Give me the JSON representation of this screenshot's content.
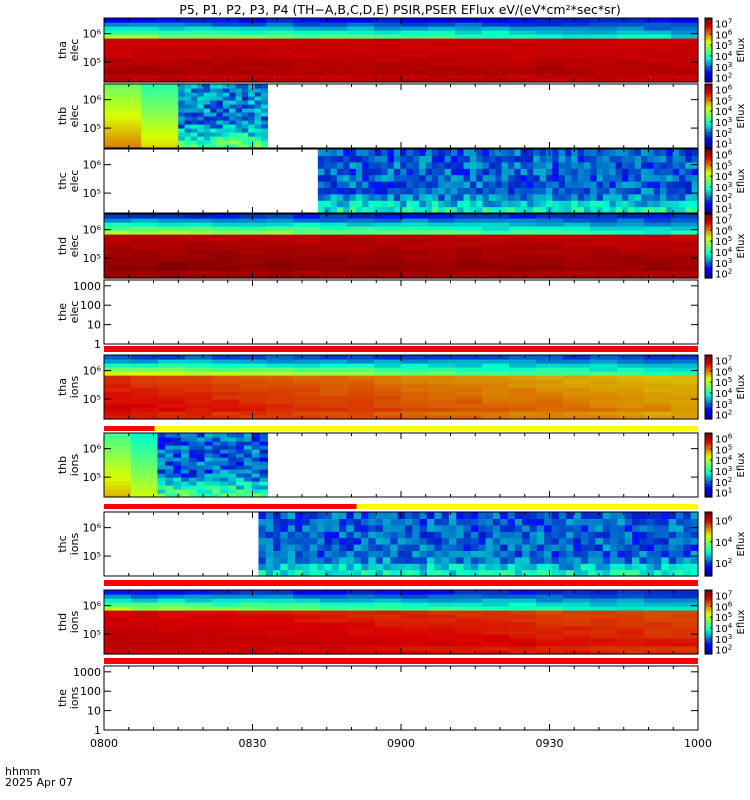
{
  "title": "P5, P1, P2, P3, P4 (TH−A,B,C,D,E) PSIR,PSER EFlux eV/(eV*cm²*sec*sr)",
  "xaxis": {
    "label": "hhmm",
    "date": "2025 Apr 07",
    "ticks": [
      "0800",
      "0830",
      "0900",
      "0930",
      "1000"
    ],
    "range_hours": [
      8,
      10
    ]
  },
  "chart_data": [
    {
      "id": "tha-elec",
      "type": "heatmap",
      "probe": "tha",
      "species": "elec",
      "ylabel_top": "tha",
      "ylabel_bottom": "elec",
      "yscale": "log",
      "yticks": [
        "10⁶",
        "10⁵"
      ],
      "ytick_exp": [
        6,
        5
      ],
      "yrange_exp": [
        4.3,
        6.55
      ],
      "colorbar": {
        "label": "Eflux",
        "ticks_exp": [
          7,
          6,
          5,
          4,
          3,
          2
        ],
        "range_exp": [
          1.6,
          7.5
        ]
      },
      "data": {
        "start": 8.0,
        "end": 10.0,
        "pattern": "dense",
        "peak_exp": 7.2,
        "edge_exp": 2.2,
        "decay": 0.05
      }
    },
    {
      "id": "thb-elec",
      "type": "heatmap",
      "probe": "thb",
      "species": "elec",
      "ylabel_top": "thb",
      "ylabel_bottom": "elec",
      "yscale": "log",
      "yticks": [
        "10⁶",
        "10⁵"
      ],
      "ytick_exp": [
        6,
        5
      ],
      "yrange_exp": [
        4.3,
        6.55
      ],
      "colorbar": {
        "label": "Eflux",
        "ticks_exp": [
          6,
          5,
          4,
          3,
          2,
          1
        ],
        "range_exp": [
          0.6,
          6.5
        ]
      },
      "data": {
        "start": 8.0,
        "end": 8.55,
        "pattern": "stepped",
        "segments": [
          [
            8.0,
            8.25,
            4.3
          ],
          [
            8.25,
            8.55,
            2.1
          ]
        ]
      }
    },
    {
      "id": "thc-elec",
      "type": "heatmap",
      "probe": "thc",
      "species": "elec",
      "ylabel_top": "thc",
      "ylabel_bottom": "elec",
      "yscale": "log",
      "yticks": [
        "10⁶",
        "10⁵"
      ],
      "ytick_exp": [
        6,
        5
      ],
      "yrange_exp": [
        4.3,
        6.55
      ],
      "colorbar": {
        "label": "Eflux",
        "ticks_exp": [
          6,
          5,
          4,
          3,
          2,
          1
        ],
        "range_exp": [
          0.6,
          6.5
        ]
      },
      "data": {
        "start": 8.72,
        "end": 10.0,
        "pattern": "noise",
        "level_exp": 1.9
      }
    },
    {
      "id": "thd-elec",
      "type": "heatmap",
      "probe": "thd",
      "species": "elec",
      "ylabel_top": "thd",
      "ylabel_bottom": "elec",
      "yscale": "log",
      "yticks": [
        "10⁶",
        "10⁵"
      ],
      "ytick_exp": [
        6,
        5
      ],
      "yrange_exp": [
        4.3,
        6.55
      ],
      "colorbar": {
        "label": "Eflux",
        "ticks_exp": [
          7,
          6,
          5,
          4,
          3,
          2
        ],
        "range_exp": [
          1.6,
          7.5
        ]
      },
      "data": {
        "start": 8.0,
        "end": 10.0,
        "pattern": "dense",
        "peak_exp": 7.4,
        "edge_exp": 2.4,
        "decay": 0.08
      }
    },
    {
      "id": "the-elec",
      "type": "line",
      "probe": "the",
      "species": "elec",
      "ylabel_top": "the",
      "ylabel_bottom": "elec",
      "yscale": "log",
      "yticks": [
        "1000",
        "100",
        "10",
        "1"
      ],
      "ytick_exp": [
        3,
        2,
        1,
        0
      ],
      "yrange_exp": [
        0,
        3.3
      ],
      "status_bar": "red",
      "data": {
        "pattern": "empty"
      }
    },
    {
      "id": "tha-ions",
      "type": "heatmap",
      "probe": "tha",
      "species": "ions",
      "ylabel_top": "tha",
      "ylabel_bottom": "ions",
      "yscale": "log",
      "yticks": [
        "10⁶",
        "10⁵"
      ],
      "ytick_exp": [
        6,
        5
      ],
      "yrange_exp": [
        4.3,
        6.55
      ],
      "colorbar": {
        "label": "Eflux",
        "ticks_exp": [
          7,
          6,
          5,
          4,
          3,
          2
        ],
        "range_exp": [
          1.6,
          7.5
        ]
      },
      "status_bar": "red-yellow",
      "status_split": 8.17,
      "data": {
        "start": 8.0,
        "end": 10.0,
        "pattern": "dense",
        "peak_exp": 6.8,
        "edge_exp": 2.6,
        "decay": 0.6
      }
    },
    {
      "id": "thb-ions",
      "type": "heatmap",
      "probe": "thb",
      "species": "ions",
      "ylabel_top": "thb",
      "ylabel_bottom": "ions",
      "yscale": "log",
      "yticks": [
        "10⁶",
        "10⁵"
      ],
      "ytick_exp": [
        6,
        5
      ],
      "yrange_exp": [
        4.3,
        6.55
      ],
      "colorbar": {
        "label": "Eflux",
        "ticks_exp": [
          6,
          5,
          4,
          3,
          2,
          1
        ],
        "range_exp": [
          0.6,
          6.5
        ]
      },
      "status_bar": "red-yellow",
      "status_split": 8.85,
      "data": {
        "start": 8.0,
        "end": 8.55,
        "pattern": "stepped",
        "segments": [
          [
            8.0,
            8.18,
            4.0
          ],
          [
            8.18,
            8.55,
            1.9
          ]
        ]
      }
    },
    {
      "id": "thc-ions",
      "type": "heatmap",
      "probe": "thc",
      "species": "ions",
      "ylabel_top": "thc",
      "ylabel_bottom": "ions",
      "yscale": "log",
      "yticks": [
        "10⁶",
        "10⁵"
      ],
      "ytick_exp": [
        6,
        5
      ],
      "yrange_exp": [
        4.3,
        6.55
      ],
      "colorbar": {
        "label": "Eflux",
        "ticks_exp": [
          6,
          4,
          2
        ],
        "range_exp": [
          0.8,
          6.8
        ]
      },
      "status_bar": "red",
      "data": {
        "start": 8.52,
        "end": 10.0,
        "pattern": "noise",
        "level_exp": 2.1
      }
    },
    {
      "id": "thd-ions",
      "type": "heatmap",
      "probe": "thd",
      "species": "ions",
      "ylabel_top": "thd",
      "ylabel_bottom": "ions",
      "yscale": "log",
      "yticks": [
        "10⁶",
        "10⁵"
      ],
      "ytick_exp": [
        6,
        5
      ],
      "yrange_exp": [
        4.3,
        6.55
      ],
      "colorbar": {
        "label": "Eflux",
        "ticks_exp": [
          7,
          6,
          5,
          4,
          3,
          2
        ],
        "range_exp": [
          1.6,
          7.5
        ]
      },
      "status_bar": "red",
      "data": {
        "start": 8.0,
        "end": 10.0,
        "pattern": "dense",
        "peak_exp": 7.1,
        "edge_exp": 2.3,
        "decay": 0.35
      }
    },
    {
      "id": "the-ions",
      "type": "line",
      "probe": "the",
      "species": "ions",
      "ylabel_top": "the",
      "ylabel_bottom": "ions",
      "yscale": "log",
      "yticks": [
        "1000",
        "100",
        "10",
        "1"
      ],
      "ytick_exp": [
        3,
        2,
        1,
        0
      ],
      "yrange_exp": [
        0,
        3.3
      ],
      "data": {
        "pattern": "empty"
      }
    }
  ]
}
